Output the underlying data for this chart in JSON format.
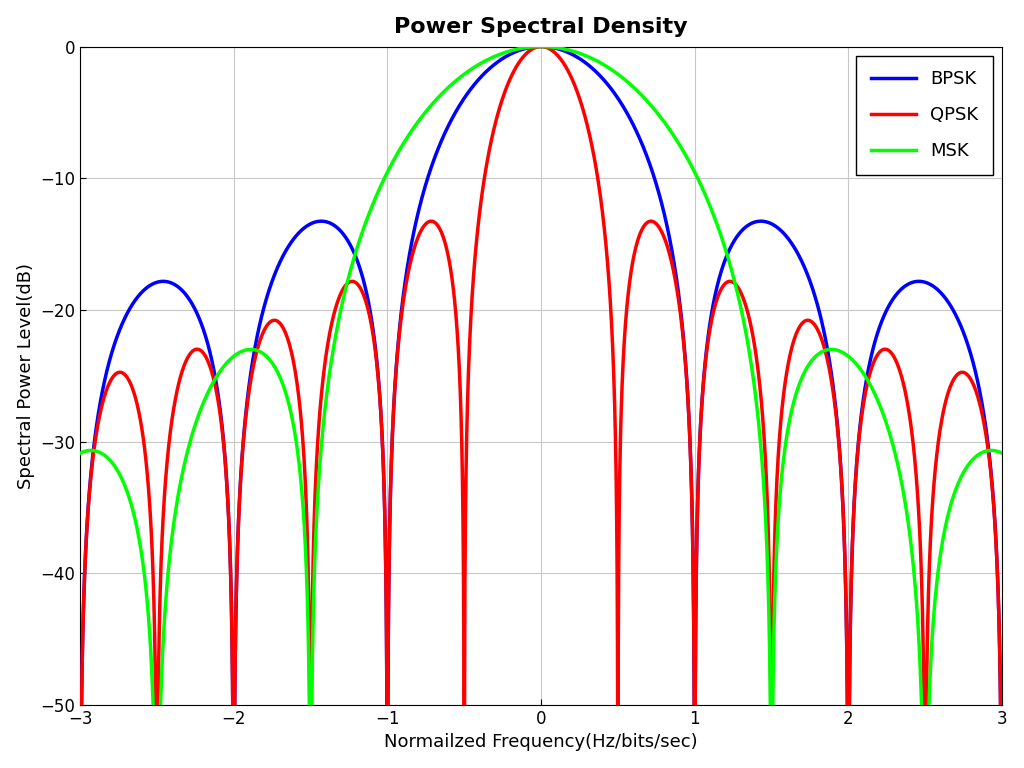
{
  "title": "Power Spectral Density",
  "xlabel": "Normailzed Frequency(Hz/bits/sec)",
  "ylabel": "Spectral Power Level(dB)",
  "xlim": [
    -3,
    3
  ],
  "ylim": [
    -50,
    0
  ],
  "yticks": [
    0,
    -10,
    -20,
    -30,
    -40,
    -50
  ],
  "xticks": [
    -3,
    -2,
    -1,
    0,
    1,
    2,
    3
  ],
  "bpsk_color": "#0000FF",
  "qpsk_color": "#FF0000",
  "msk_color": "#00FF00",
  "linewidth": 2.5,
  "legend_labels": [
    "BPSK",
    "QPSK",
    "MSK"
  ],
  "background_color": "#FFFFFF",
  "grid_color": "#C8C8C8",
  "title_fontsize": 16,
  "label_fontsize": 13,
  "tick_fontsize": 12,
  "legend_fontsize": 13
}
